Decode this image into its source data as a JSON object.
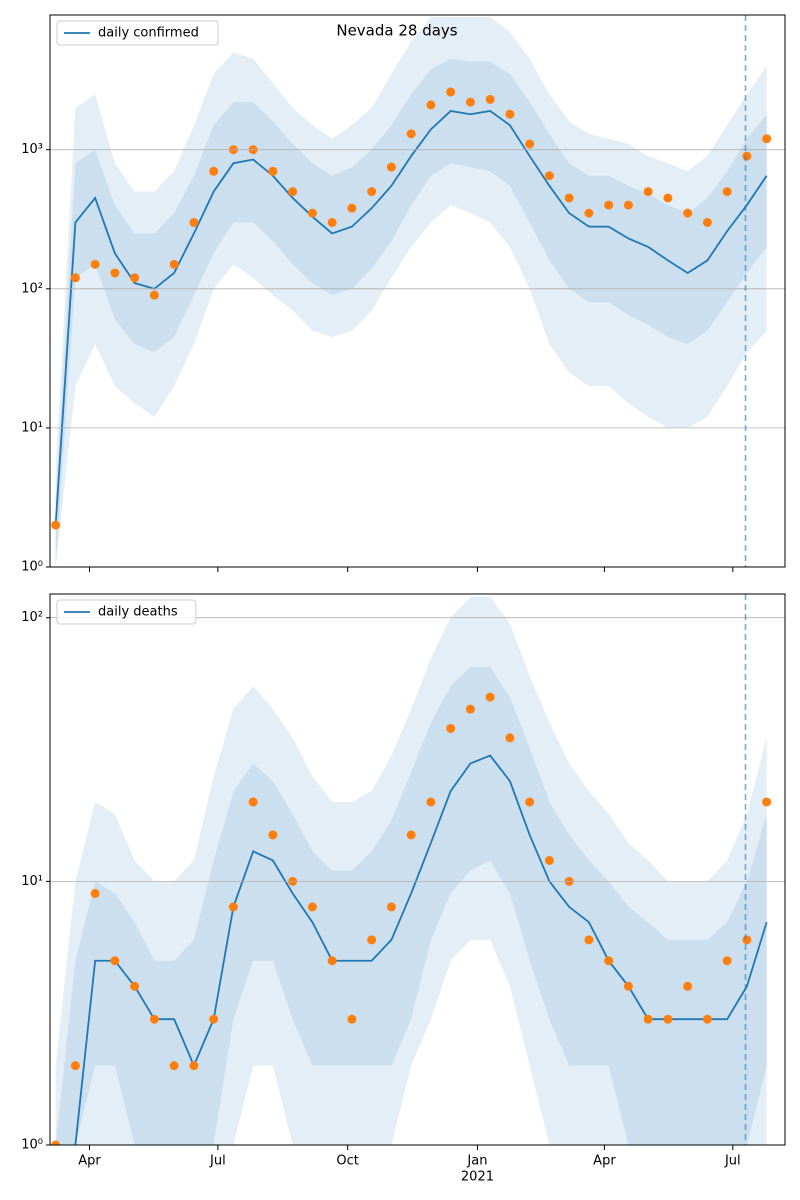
{
  "chart_data": [
    {
      "type": "line",
      "title": "Nevada 28 days",
      "log_y": true,
      "grid": "y",
      "legend": "upper left",
      "x": [
        7,
        21,
        35,
        49,
        63,
        77,
        91,
        105,
        119,
        133,
        147,
        161,
        175,
        189,
        203,
        217,
        231,
        245,
        259,
        273,
        287,
        301,
        315,
        329,
        343,
        357,
        371,
        385,
        399,
        413,
        427,
        441,
        455,
        469,
        483,
        497,
        511
      ],
      "xlim": [
        3,
        524
      ],
      "ylim": [
        1,
        9300
      ],
      "yticks": [
        {
          "value": 1,
          "label": "10⁰"
        },
        {
          "value": 10,
          "label": "10¹"
        },
        {
          "value": 100,
          "label": "10²"
        },
        {
          "value": 1000,
          "label": "10³"
        }
      ],
      "vline": 496,
      "series": [
        {
          "name": "daily confirmed",
          "color": "#1f77b4",
          "values": [
            2,
            300,
            450,
            180,
            110,
            100,
            130,
            250,
            500,
            800,
            850,
            650,
            450,
            330,
            250,
            280,
            380,
            550,
            900,
            1400,
            1900,
            1800,
            1900,
            1500,
            900,
            550,
            350,
            280,
            280,
            230,
            200,
            160,
            130,
            160,
            260,
            400,
            650
          ]
        }
      ],
      "scatter": {
        "color": "#ff7f0e",
        "values": [
          2,
          120,
          150,
          130,
          120,
          90,
          150,
          300,
          700,
          1000,
          1000,
          700,
          500,
          350,
          300,
          380,
          500,
          750,
          1300,
          2100,
          2600,
          2200,
          2300,
          1800,
          1100,
          650,
          450,
          350,
          400,
          400,
          500,
          450,
          350,
          300,
          500,
          900,
          1200
        ]
      },
      "bands": [
        {
          "lower": [
            1,
            20,
            40,
            20,
            15,
            12,
            20,
            40,
            100,
            150,
            120,
            90,
            70,
            50,
            45,
            50,
            70,
            120,
            200,
            300,
            400,
            350,
            300,
            200,
            100,
            40,
            25,
            20,
            20,
            15,
            12,
            10,
            10,
            12,
            20,
            35,
            50
          ],
          "upper": [
            5,
            2000,
            2500,
            800,
            500,
            500,
            700,
            1500,
            3500,
            5000,
            4500,
            3000,
            2000,
            1500,
            1200,
            1500,
            2000,
            3500,
            6000,
            9000,
            9000,
            9000,
            9000,
            7000,
            4500,
            2500,
            1600,
            1300,
            1200,
            1100,
            900,
            800,
            700,
            900,
            1500,
            2500,
            4000
          ]
        },
        {
          "lower": [
            1,
            120,
            150,
            60,
            40,
            35,
            45,
            90,
            180,
            300,
            300,
            220,
            150,
            110,
            90,
            100,
            140,
            220,
            400,
            650,
            800,
            750,
            700,
            550,
            300,
            160,
            100,
            80,
            80,
            65,
            55,
            45,
            40,
            50,
            80,
            130,
            200
          ],
          "upper": [
            3,
            800,
            1000,
            400,
            250,
            250,
            350,
            650,
            1500,
            2200,
            2200,
            1600,
            1100,
            800,
            650,
            750,
            1000,
            1500,
            2500,
            3800,
            4500,
            4300,
            4300,
            3500,
            2200,
            1300,
            800,
            650,
            650,
            550,
            480,
            400,
            350,
            450,
            700,
            1200,
            1800
          ]
        }
      ]
    },
    {
      "type": "line",
      "log_y": true,
      "grid": "y",
      "legend": "upper left",
      "x": [
        7,
        21,
        35,
        49,
        63,
        77,
        91,
        105,
        119,
        133,
        147,
        161,
        175,
        189,
        203,
        217,
        231,
        245,
        259,
        273,
        287,
        301,
        315,
        329,
        343,
        357,
        371,
        385,
        399,
        413,
        427,
        441,
        455,
        469,
        483,
        497,
        511
      ],
      "xlim": [
        3,
        524
      ],
      "ylim": [
        1,
        123
      ],
      "xticks": [
        {
          "value": 31,
          "label": "Apr"
        },
        {
          "value": 122,
          "label": "Jul"
        },
        {
          "value": 214,
          "label": "Oct"
        },
        {
          "value": 306,
          "label": "Jan"
        },
        {
          "value": 396,
          "label": "Apr"
        },
        {
          "value": 487,
          "label": "Jul"
        }
      ],
      "x_year_label": "2021",
      "yticks": [
        {
          "value": 1,
          "label": "10⁰"
        },
        {
          "value": 10,
          "label": "10¹"
        },
        {
          "value": 100,
          "label": "10²"
        }
      ],
      "vline": 496,
      "series": [
        {
          "name": "daily deaths",
          "color": "#1f77b4",
          "values": [
            null,
            1,
            5,
            5,
            4,
            3,
            3,
            2,
            3,
            8,
            13,
            12,
            9,
            7,
            5,
            5,
            5,
            6,
            9,
            14,
            22,
            28,
            30,
            24,
            15,
            10,
            8,
            7,
            5,
            4,
            3,
            3,
            3,
            3,
            3,
            4,
            7
          ]
        }
      ],
      "scatter": {
        "color": "#ff7f0e",
        "values": [
          1,
          2,
          9,
          5,
          4,
          3,
          2,
          2,
          3,
          8,
          20,
          15,
          10,
          8,
          5,
          3,
          6,
          8,
          15,
          20,
          38,
          45,
          50,
          35,
          20,
          12,
          10,
          6,
          5,
          4,
          3,
          3,
          4,
          3,
          5,
          6,
          20
        ]
      },
      "bands": [
        {
          "lower": [
            1,
            1,
            1,
            1,
            1,
            1,
            1,
            1,
            1,
            1,
            2,
            2,
            1,
            1,
            1,
            1,
            1,
            1,
            2,
            3,
            5,
            6,
            6,
            4,
            2,
            1,
            1,
            1,
            1,
            1,
            1,
            1,
            1,
            1,
            1,
            1,
            1
          ],
          "upper": [
            2,
            10,
            20,
            18,
            12,
            10,
            10,
            12,
            25,
            45,
            55,
            45,
            35,
            25,
            20,
            20,
            22,
            30,
            45,
            70,
            100,
            120,
            120,
            95,
            60,
            40,
            28,
            22,
            18,
            14,
            12,
            10,
            10,
            10,
            12,
            18,
            35
          ]
        },
        {
          "lower": [
            1,
            1,
            2,
            2,
            1,
            1,
            1,
            1,
            1,
            3,
            5,
            5,
            3,
            2,
            2,
            2,
            2,
            2,
            3,
            6,
            9,
            11,
            12,
            9,
            5,
            3,
            2,
            2,
            2,
            1,
            1,
            1,
            1,
            1,
            1,
            1,
            2
          ],
          "upper": [
            1,
            5,
            10,
            9,
            7,
            5,
            5,
            6,
            12,
            22,
            28,
            24,
            18,
            13,
            11,
            11,
            13,
            17,
            26,
            40,
            55,
            65,
            65,
            50,
            32,
            20,
            15,
            12,
            10,
            8,
            7,
            6,
            6,
            6,
            7,
            10,
            18
          ]
        }
      ]
    }
  ]
}
